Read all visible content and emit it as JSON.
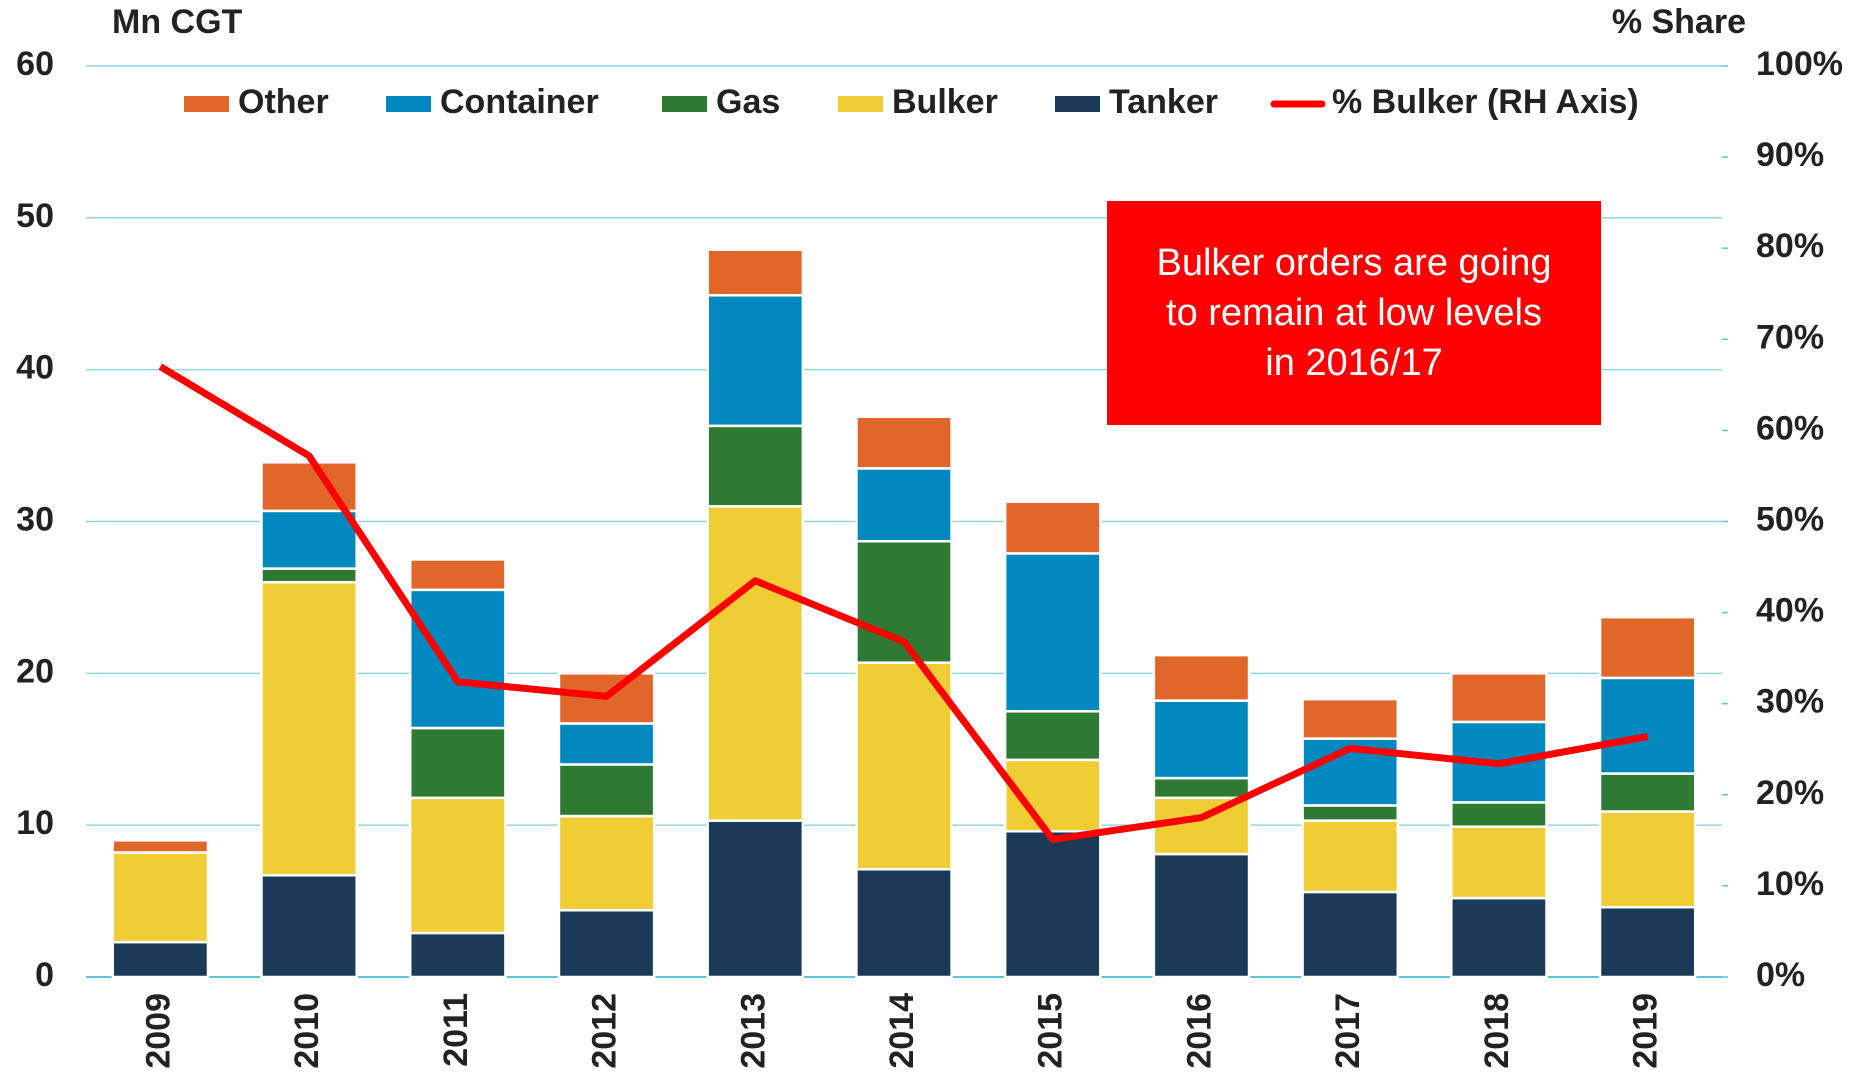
{
  "chart_data": {
    "type": "stacked_bar_line",
    "y_label": "Mn CGT",
    "y2_label": "% Share",
    "annotation": [
      "Bulker orders are going",
      "to remain at low levels",
      "in 2016/17"
    ],
    "categories": [
      "2009",
      "2010",
      "2011",
      "2012",
      "2013",
      "2014",
      "2015",
      "2016",
      "2017",
      "2018",
      "2019"
    ],
    "series": [
      {
        "name": "Other",
        "color": "#e0662a",
        "values": [
          0.8,
          3.2,
          2.0,
          3.3,
          3.0,
          3.4,
          3.4,
          3.0,
          2.6,
          3.2,
          4.0
        ]
      },
      {
        "name": "Container",
        "color": "#0088bf",
        "values": [
          0,
          3.8,
          9.1,
          2.7,
          8.6,
          4.8,
          10.4,
          5.1,
          4.4,
          5.3,
          6.3
        ]
      },
      {
        "name": "Gas",
        "color": "#2e7a33",
        "values": [
          0,
          0.9,
          4.6,
          3.4,
          5.3,
          8.0,
          3.2,
          1.3,
          1.0,
          1.6,
          2.5
        ]
      },
      {
        "name": "Bulker",
        "color": "#f0cc35",
        "values": [
          5.9,
          19.3,
          8.9,
          6.2,
          20.7,
          13.6,
          4.7,
          3.7,
          4.7,
          4.7,
          6.3
        ]
      },
      {
        "name": "Tanker",
        "color": "#1b3a57",
        "values": [
          2.3,
          6.7,
          2.9,
          4.4,
          10.3,
          7.1,
          9.6,
          8.1,
          5.6,
          5.2,
          4.6
        ]
      },
      {
        "name": "% Bulker (RH Axis)",
        "color": "#ff0000",
        "axis": "y2",
        "type": "line",
        "values": [
          67.0,
          57.2,
          32.4,
          30.8,
          43.5,
          36.8,
          15.1,
          17.5,
          25.1,
          23.4,
          26.4
        ]
      }
    ],
    "ylim": [
      0,
      60
    ],
    "yticks": [
      0,
      10,
      20,
      30,
      40,
      50,
      60
    ],
    "y2lim": [
      0,
      100
    ],
    "y2ticks": [
      {
        "value": 0,
        "label": "0%"
      },
      {
        "value": 10,
        "label": "10%"
      },
      {
        "value": 20,
        "label": "20%"
      },
      {
        "value": 30,
        "label": "30%"
      },
      {
        "value": 40,
        "label": "40%"
      },
      {
        "value": 50,
        "label": "50%"
      },
      {
        "value": 60,
        "label": "60%"
      },
      {
        "value": 70,
        "label": "70%"
      },
      {
        "value": 80,
        "label": "80%"
      },
      {
        "value": 90,
        "label": "90%"
      },
      {
        "value": 100,
        "label": "100%"
      }
    ],
    "grid": true
  }
}
